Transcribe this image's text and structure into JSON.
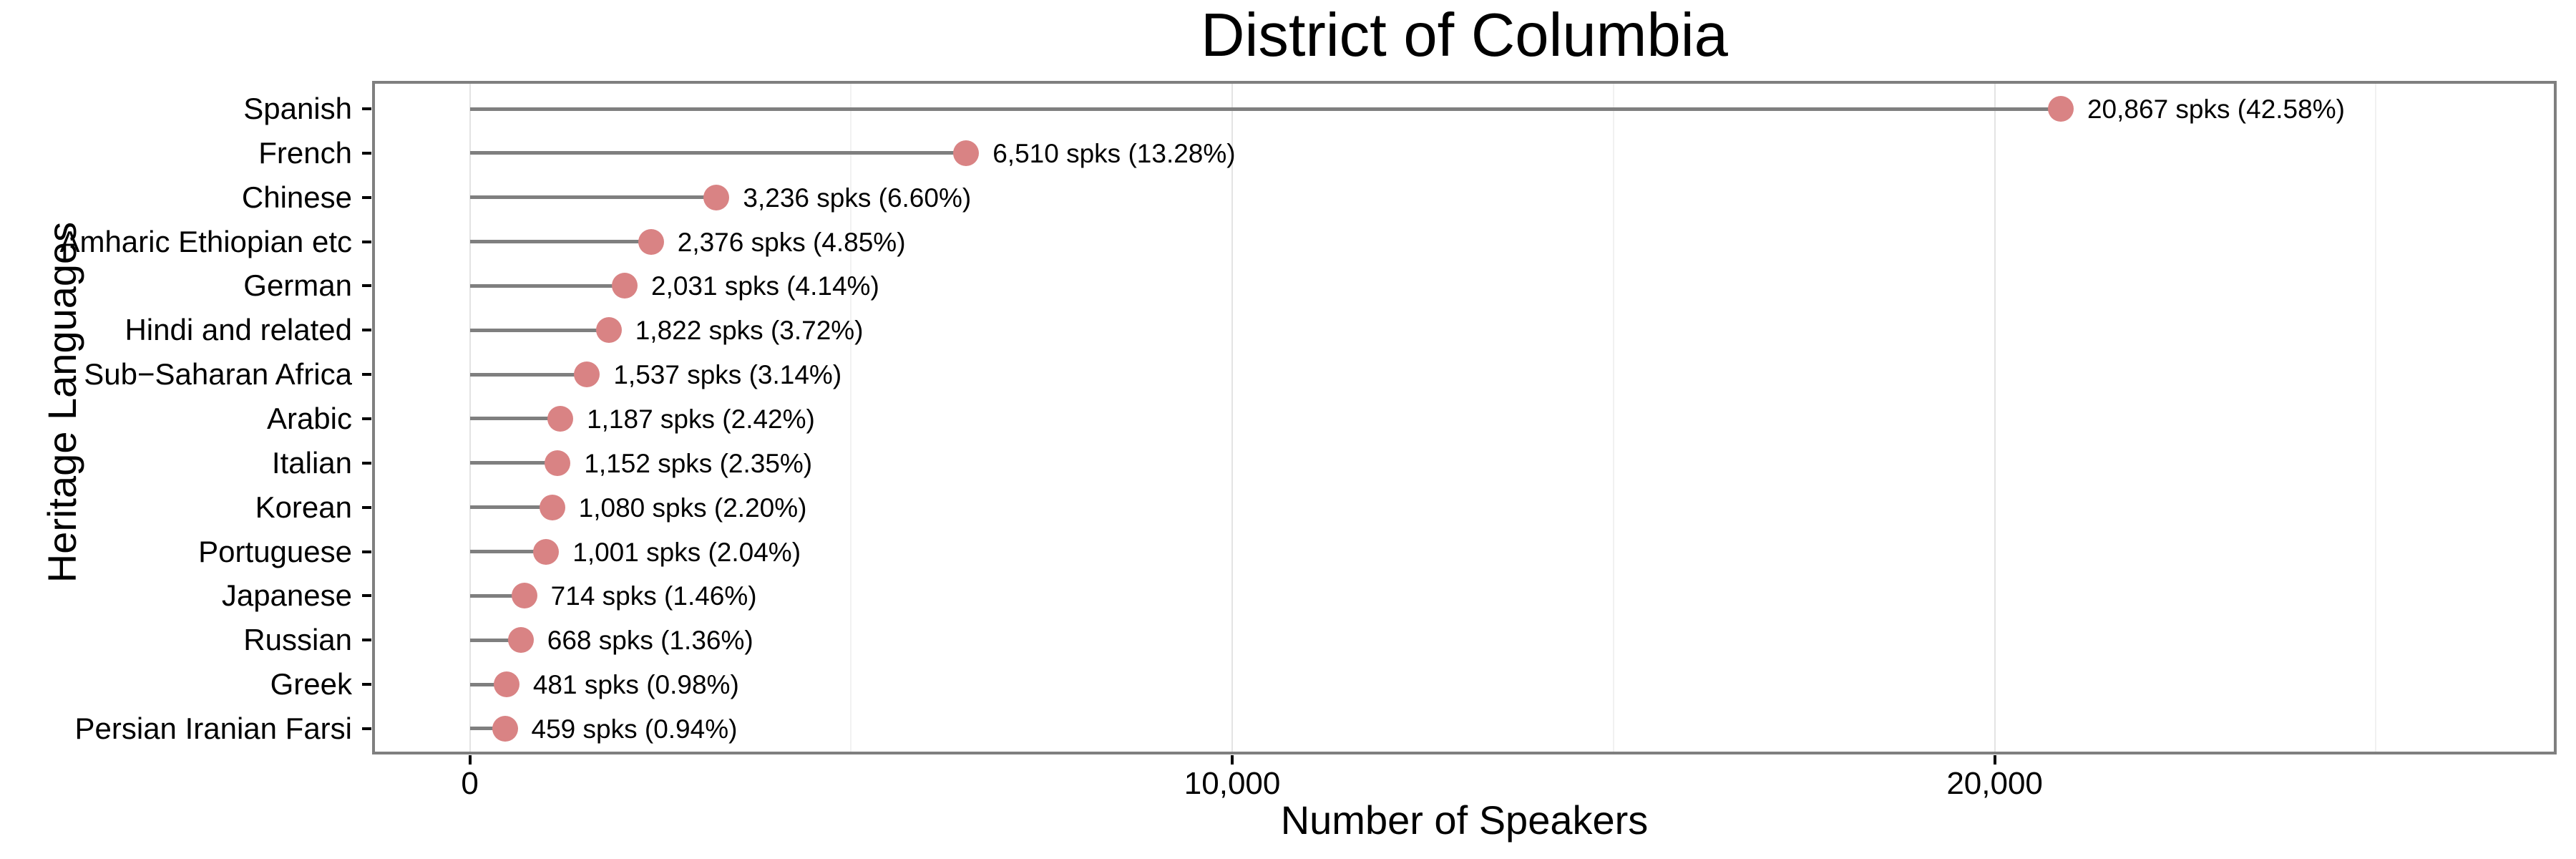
{
  "chart_data": {
    "type": "bar",
    "style": "horizontal-lollipop",
    "title": "District of Columbia",
    "xlabel": "Number of Speakers",
    "ylabel": "Heritage Languages",
    "categories": [
      "Spanish",
      "French",
      "Chinese",
      "Amharic Ethiopian etc",
      "German",
      "Hindi and related",
      "Sub−Saharan Africa",
      "Arabic",
      "Italian",
      "Korean",
      "Portuguese",
      "Japanese",
      "Russian",
      "Greek",
      "Persian Iranian Farsi"
    ],
    "values": [
      20867,
      6510,
      3236,
      2376,
      2031,
      1822,
      1537,
      1187,
      1152,
      1080,
      1001,
      714,
      668,
      481,
      459
    ],
    "percentages": [
      42.58,
      13.28,
      6.6,
      4.85,
      4.14,
      3.72,
      3.14,
      2.42,
      2.35,
      2.2,
      2.04,
      1.46,
      1.36,
      0.98,
      0.94
    ],
    "point_labels": [
      "20,867 spks (42.58%)",
      "6,510 spks (13.28%)",
      "3,236 spks (6.60%)",
      "2,376 spks (4.85%)",
      "2,031 spks (4.14%)",
      "1,822 spks (3.72%)",
      "1,537 spks (3.14%)",
      "1,187 spks (2.42%)",
      "1,152 spks (2.35%)",
      "1,080 spks (2.20%)",
      "1,001 spks (2.04%)",
      "714 spks (1.46%)",
      "668 spks (1.36%)",
      "481 spks (0.98%)",
      "459 spks (0.94%)"
    ],
    "xlim": [
      -1282,
      27371
    ],
    "xticks": [
      {
        "value": 0,
        "label": "0"
      },
      {
        "value": 10000,
        "label": "10,000"
      },
      {
        "value": 20000,
        "label": "20,000"
      }
    ],
    "minor_gridlines": [
      5000,
      15000,
      25000
    ],
    "grid": true,
    "legend": "none",
    "colors": {
      "dot": "#D98384",
      "stem": "#7F7F7F",
      "panel_border": "#7F7F7F",
      "grid_major": "#E3E3E3",
      "grid_minor": "#F1F1F1",
      "text": "#000000",
      "background": "#FFFFFF"
    }
  }
}
